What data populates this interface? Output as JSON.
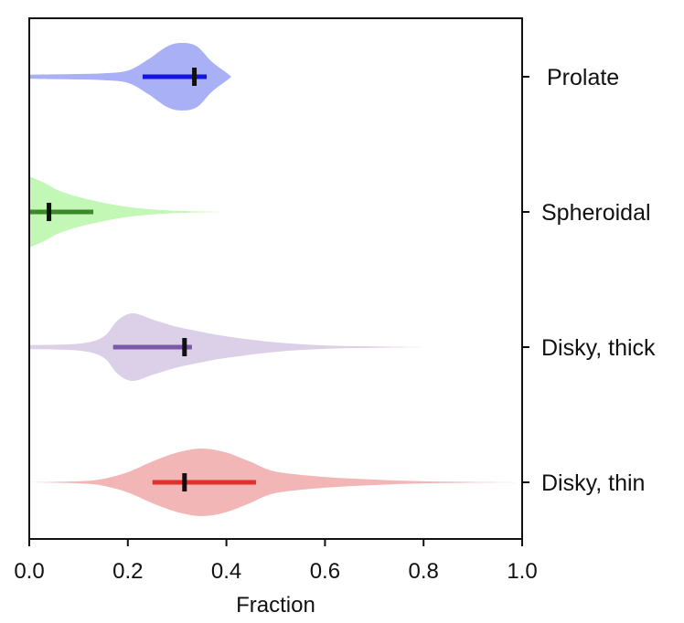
{
  "chart_data": {
    "type": "violin",
    "orientation": "horizontal",
    "xlabel": "Fraction",
    "xlim": [
      0.0,
      1.0
    ],
    "xticks": [
      "0.0",
      "0.2",
      "0.4",
      "0.6",
      "0.8",
      "1.0"
    ],
    "xtick_values": [
      0.0,
      0.2,
      0.4,
      0.6,
      0.8,
      1.0
    ],
    "category_axis_side": "right",
    "series": [
      {
        "name": "Prolate",
        "color": "#aab0f5",
        "bar_color": "#1414e0",
        "range_low": 0.23,
        "range_high": 0.36,
        "marker": 0.335,
        "density": [
          [
            0.0,
            0.06
          ],
          [
            0.05,
            0.07
          ],
          [
            0.1,
            0.08
          ],
          [
            0.15,
            0.1
          ],
          [
            0.2,
            0.18
          ],
          [
            0.24,
            0.5
          ],
          [
            0.28,
            0.9
          ],
          [
            0.31,
            1.0
          ],
          [
            0.34,
            0.9
          ],
          [
            0.37,
            0.45
          ],
          [
            0.4,
            0.12
          ],
          [
            0.41,
            0.0
          ]
        ]
      },
      {
        "name": "Spheroidal",
        "color": "#c2f7b5",
        "bar_color": "#3a8a2a",
        "range_low": 0.0,
        "range_high": 0.13,
        "marker": 0.04,
        "density": [
          [
            0.0,
            1.0
          ],
          [
            0.03,
            0.82
          ],
          [
            0.06,
            0.6
          ],
          [
            0.1,
            0.42
          ],
          [
            0.15,
            0.26
          ],
          [
            0.2,
            0.14
          ],
          [
            0.25,
            0.07
          ],
          [
            0.3,
            0.03
          ],
          [
            0.35,
            0.01
          ],
          [
            0.4,
            0.0
          ]
        ]
      },
      {
        "name": "Disky, thick",
        "color": "#dccfe8",
        "bar_color": "#7a5aa8",
        "range_low": 0.17,
        "range_high": 0.33,
        "marker": 0.315,
        "density": [
          [
            0.0,
            0.06
          ],
          [
            0.1,
            0.1
          ],
          [
            0.15,
            0.3
          ],
          [
            0.18,
            0.8
          ],
          [
            0.21,
            1.0
          ],
          [
            0.25,
            0.82
          ],
          [
            0.3,
            0.6
          ],
          [
            0.35,
            0.45
          ],
          [
            0.4,
            0.32
          ],
          [
            0.5,
            0.14
          ],
          [
            0.6,
            0.05
          ],
          [
            0.7,
            0.02
          ],
          [
            0.8,
            0.0
          ]
        ]
      },
      {
        "name": "Disky, thin",
        "color": "#f3b6b6",
        "bar_color": "#e0302a",
        "range_low": 0.25,
        "range_high": 0.46,
        "marker": 0.315,
        "density": [
          [
            0.0,
            0.0
          ],
          [
            0.1,
            0.03
          ],
          [
            0.15,
            0.1
          ],
          [
            0.2,
            0.3
          ],
          [
            0.25,
            0.62
          ],
          [
            0.3,
            0.88
          ],
          [
            0.35,
            1.0
          ],
          [
            0.4,
            0.88
          ],
          [
            0.45,
            0.6
          ],
          [
            0.5,
            0.32
          ],
          [
            0.6,
            0.16
          ],
          [
            0.7,
            0.08
          ],
          [
            0.8,
            0.03
          ],
          [
            0.9,
            0.01
          ],
          [
            1.0,
            0.0
          ]
        ]
      }
    ]
  }
}
